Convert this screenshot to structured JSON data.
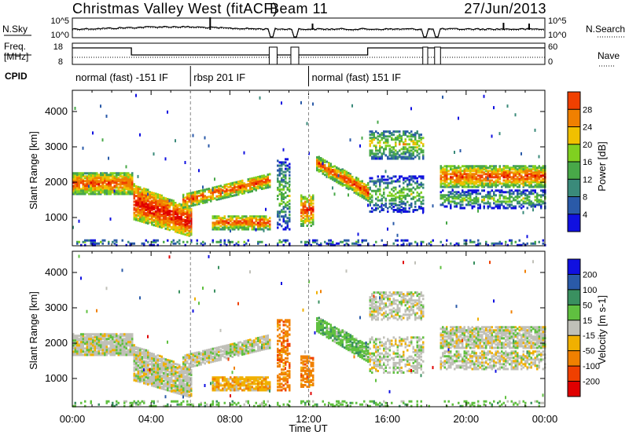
{
  "header": {
    "title": "Christmas Valley West (fitACF)",
    "beam": "Beam 11",
    "date": "27/Jun/2013"
  },
  "noise_panel": {
    "left_label": "N.Sky",
    "right_label": "N.Search",
    "left_ticks": [
      "10^5",
      "10^0"
    ],
    "right_ticks": [
      "10^5",
      "10^0"
    ]
  },
  "freq_panel": {
    "left_label_1": "Freq.",
    "left_label_2": "[MHz]",
    "right_label": "Nave",
    "left_ticks": [
      "18",
      "8"
    ],
    "right_ticks": [
      "60",
      "0"
    ]
  },
  "cpid": {
    "label": "CPID",
    "segments": [
      {
        "text": "normal (fast) -151 IF",
        "start": 0,
        "end": 6
      },
      {
        "text": "rbsp 201 IF",
        "start": 6,
        "end": 12
      },
      {
        "text": "normal (fast) 151 IF",
        "start": 12,
        "end": 24
      }
    ]
  },
  "colors": {
    "power": [
      "#1010e0",
      "#2a5aa8",
      "#3a8a7a",
      "#48a848",
      "#80d020",
      "#f0c000",
      "#f08000",
      "#f04000",
      "#e00000"
    ],
    "velocity": [
      "#e00000",
      "#f04000",
      "#f08000",
      "#f0b000",
      "#c0c0b8",
      "#60c040",
      "#3a9060",
      "#2a5aa8",
      "#1010e0"
    ]
  },
  "chart_data": [
    {
      "type": "heatmap",
      "name": "power",
      "xlabel": "",
      "ylabel": "Slant Range [km]",
      "x_ticks": [
        "00:00",
        "04:00",
        "08:00",
        "12:00",
        "16:00",
        "20:00",
        "00:00"
      ],
      "y_ticks": [
        1000,
        2000,
        3000,
        4000
      ],
      "xlim_hours": [
        0,
        24
      ],
      "ylim_km": [
        200,
        4600
      ],
      "colorbar_label": "Power [dB]",
      "colorbar_ticks": [
        4,
        8,
        12,
        16,
        20,
        24,
        28
      ]
    },
    {
      "type": "heatmap",
      "name": "velocity",
      "xlabel": "Time UT",
      "ylabel": "Slant Range [km]",
      "x_ticks": [
        "00:00",
        "04:00",
        "08:00",
        "12:00",
        "16:00",
        "20:00",
        "00:00"
      ],
      "y_ticks": [
        1000,
        2000,
        3000,
        4000
      ],
      "xlim_hours": [
        0,
        24
      ],
      "ylim_km": [
        200,
        4600
      ],
      "colorbar_label": "Velocity [m s-1]",
      "colorbar_ticks": [
        200,
        100,
        50,
        15,
        -15,
        -50,
        -100,
        -200
      ]
    }
  ]
}
